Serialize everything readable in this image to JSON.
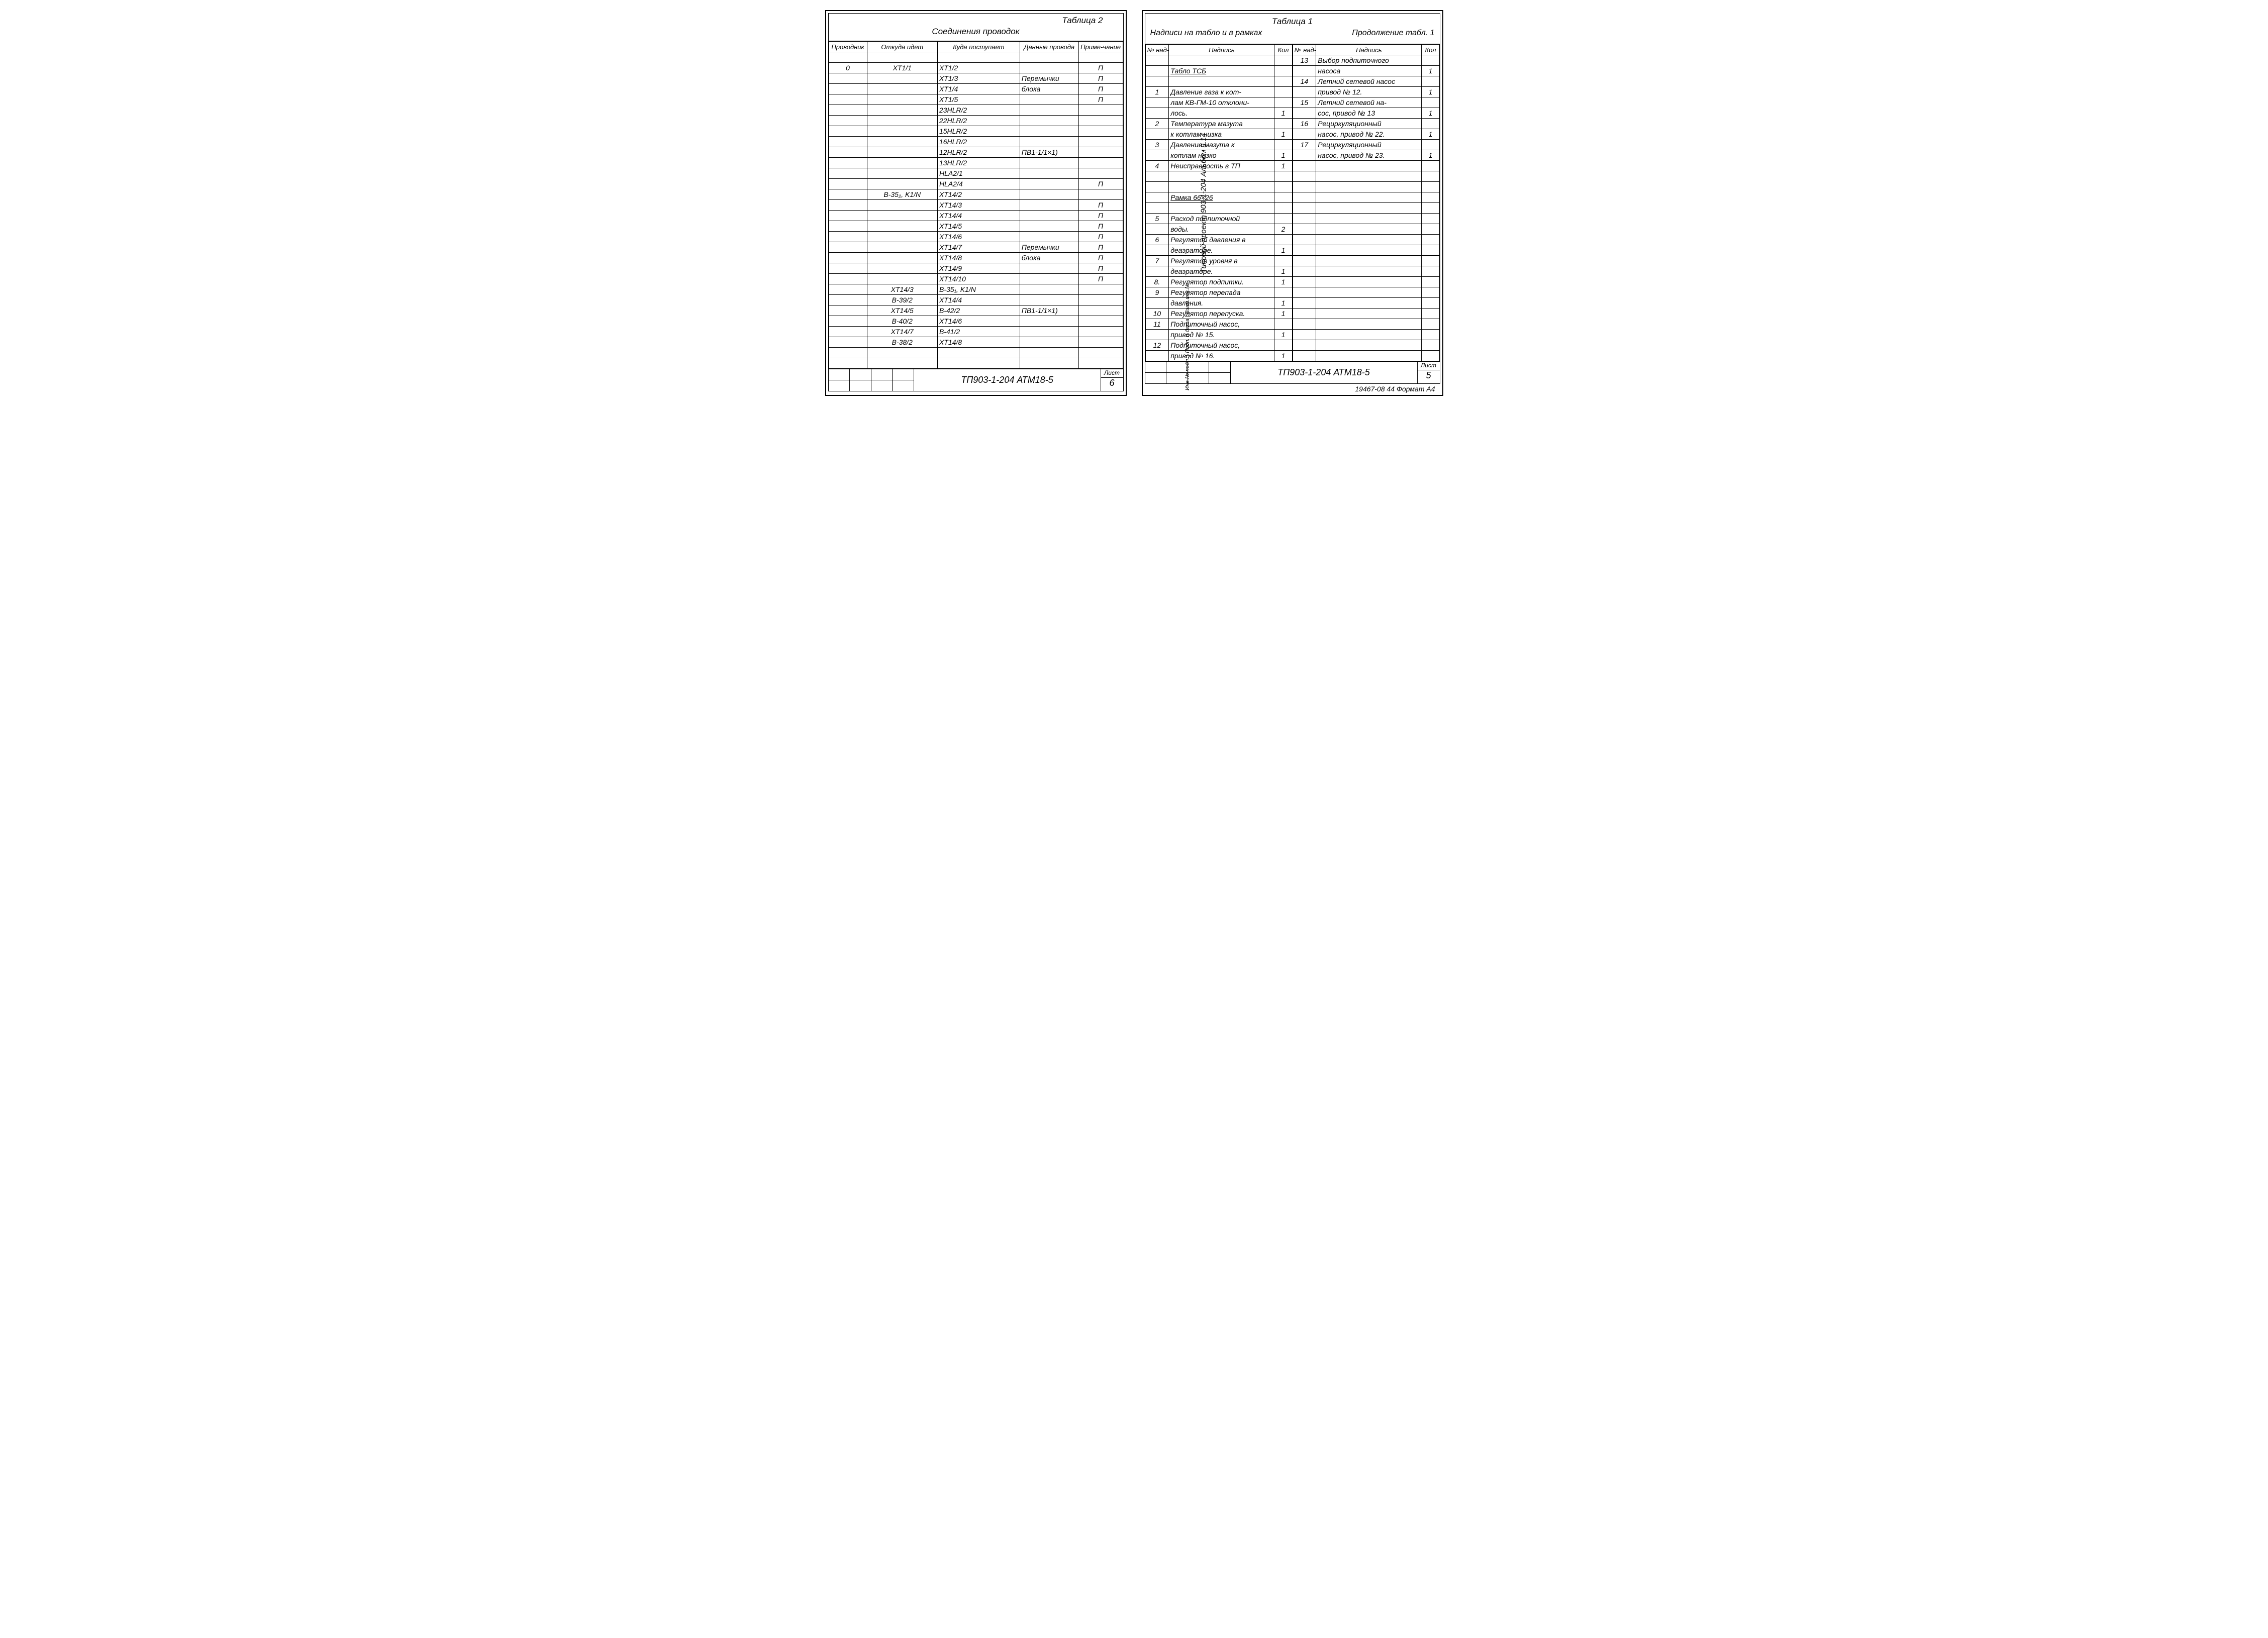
{
  "left": {
    "tableLabel": "Таблица 2",
    "title": "Соединения проводок",
    "headers": {
      "c1": "Проводник",
      "c2": "Откуда идет",
      "c3": "Куда поступает",
      "c4": "Данные провода",
      "c5": "Приме-чание"
    },
    "rows": [
      {
        "c1": "",
        "c2": "",
        "c3": "",
        "c4": "",
        "c5": ""
      },
      {
        "c1": "0",
        "c2": "XT1/1",
        "c3": "XT1/2",
        "c4": "",
        "c5": "П"
      },
      {
        "c1": "",
        "c2": "",
        "c3": "XT1/3",
        "c4": "Перемычки",
        "c5": "П"
      },
      {
        "c1": "",
        "c2": "",
        "c3": "XT1/4",
        "c4": "блока",
        "c5": "П"
      },
      {
        "c1": "",
        "c2": "",
        "c3": "XT1/5",
        "c4": "",
        "c5": "П"
      },
      {
        "c1": "",
        "c2": "",
        "c3": "23HLR/2",
        "c4": "",
        "c5": ""
      },
      {
        "c1": "",
        "c2": "",
        "c3": "22HLR/2",
        "c4": "",
        "c5": ""
      },
      {
        "c1": "",
        "c2": "",
        "c3": "15HLR/2",
        "c4": "",
        "c5": ""
      },
      {
        "c1": "",
        "c2": "",
        "c3": "16HLR/2",
        "c4": "",
        "c5": ""
      },
      {
        "c1": "",
        "c2": "",
        "c3": "12HLR/2",
        "c4": "ПВ1-1/1×1)",
        "c5": ""
      },
      {
        "c1": "",
        "c2": "",
        "c3": "13HLR/2",
        "c4": "",
        "c5": ""
      },
      {
        "c1": "",
        "c2": "",
        "c3": "HLA2/1",
        "c4": "",
        "c5": ""
      },
      {
        "c1": "",
        "c2": "",
        "c3": "HLA2/4",
        "c4": "",
        "c5": "П"
      },
      {
        "c1": "",
        "c2": "B-35₂, K1/N",
        "c3": "XT14/2",
        "c4": "",
        "c5": ""
      },
      {
        "c1": "",
        "c2": "",
        "c3": "XT14/3",
        "c4": "",
        "c5": "П"
      },
      {
        "c1": "",
        "c2": "",
        "c3": "XT14/4",
        "c4": "",
        "c5": "П"
      },
      {
        "c1": "",
        "c2": "",
        "c3": "XT14/5",
        "c4": "",
        "c5": "П"
      },
      {
        "c1": "",
        "c2": "",
        "c3": "XT14/6",
        "c4": "",
        "c5": "П"
      },
      {
        "c1": "",
        "c2": "",
        "c3": "XT14/7",
        "c4": "Перемычки",
        "c5": "П"
      },
      {
        "c1": "",
        "c2": "",
        "c3": "XT14/8",
        "c4": "блока",
        "c5": "П"
      },
      {
        "c1": "",
        "c2": "",
        "c3": "XT14/9",
        "c4": "",
        "c5": "П"
      },
      {
        "c1": "",
        "c2": "",
        "c3": "XT14/10",
        "c4": "",
        "c5": "П"
      },
      {
        "c1": "",
        "c2": "XT14/3",
        "c3": "B-35₁, K1/N",
        "c4": "",
        "c5": ""
      },
      {
        "c1": "",
        "c2": "B-39/2",
        "c3": "XT14/4",
        "c4": "",
        "c5": ""
      },
      {
        "c1": "",
        "c2": "XT14/5",
        "c3": "B-42/2",
        "c4": "ПВ1-1/1×1)",
        "c5": ""
      },
      {
        "c1": "",
        "c2": "B-40/2",
        "c3": "XT14/6",
        "c4": "",
        "c5": ""
      },
      {
        "c1": "",
        "c2": "XT14/7",
        "c3": "B-41/2",
        "c4": "",
        "c5": ""
      },
      {
        "c1": "",
        "c2": "B-38/2",
        "c3": "XT14/8",
        "c4": "",
        "c5": ""
      },
      {
        "c1": "",
        "c2": "",
        "c3": "",
        "c4": "",
        "c5": ""
      },
      {
        "c1": "",
        "c2": "",
        "c3": "",
        "c4": "",
        "c5": ""
      }
    ],
    "footer": {
      "code": "ТП903-1-204   АТМ18-5",
      "listLabel": "Лист",
      "listNo": "6"
    }
  },
  "right": {
    "tableLabel": "Таблица 1",
    "subtitleLeft": "Надписи на табло и в рамках",
    "subtitleRight": "Продолжение табл. 1",
    "headers": {
      "a": "№ над-писи",
      "b": "Надпись",
      "c": "Кол"
    },
    "leftRows": [
      {
        "a": "",
        "b": "",
        "c": ""
      },
      {
        "a": "",
        "b": "Табло ТСБ",
        "c": "",
        "u": true
      },
      {
        "a": "",
        "b": "",
        "c": ""
      },
      {
        "a": "1",
        "b": "Давление газа к кот-",
        "c": ""
      },
      {
        "a": "",
        "b": "лам КВ-ГМ-10 отклони-",
        "c": ""
      },
      {
        "a": "",
        "b": "лось.",
        "c": "1"
      },
      {
        "a": "2",
        "b": "Температура мазута",
        "c": ""
      },
      {
        "a": "",
        "b": "к котлам низка",
        "c": "1"
      },
      {
        "a": "3",
        "b": "Давление мазута к",
        "c": ""
      },
      {
        "a": "",
        "b": "котлам низко",
        "c": "1"
      },
      {
        "a": "4",
        "b": "Неисправность в ТП",
        "c": "1"
      },
      {
        "a": "",
        "b": "",
        "c": ""
      },
      {
        "a": "",
        "b": "",
        "c": ""
      },
      {
        "a": "",
        "b": "Рамка 66×26",
        "c": "",
        "u": true
      },
      {
        "a": "",
        "b": "",
        "c": ""
      },
      {
        "a": "5",
        "b": "Расход подпиточной",
        "c": ""
      },
      {
        "a": "",
        "b": "воды.",
        "c": "2"
      },
      {
        "a": "6",
        "b": "Регулятор давления в",
        "c": ""
      },
      {
        "a": "",
        "b": "деаэраторе.",
        "c": "1"
      },
      {
        "a": "7",
        "b": "Регулятор уровня в",
        "c": ""
      },
      {
        "a": "",
        "b": "деаэраторе.",
        "c": "1"
      },
      {
        "a": "8.",
        "b": "Регулятор подпитки.",
        "c": "1"
      },
      {
        "a": "9",
        "b": "Регулятор перепада",
        "c": ""
      },
      {
        "a": "",
        "b": "давления.",
        "c": "1"
      },
      {
        "a": "10",
        "b": "Регулятор перепуска.",
        "c": "1"
      },
      {
        "a": "11",
        "b": "Подпиточный насос,",
        "c": ""
      },
      {
        "a": "",
        "b": "привод № 15.",
        "c": "1"
      },
      {
        "a": "12",
        "b": "Подпиточный насос,",
        "c": ""
      },
      {
        "a": "",
        "b": "привод № 16.",
        "c": "1"
      }
    ],
    "rightRows": [
      {
        "a": "13",
        "b": "Выбор подпиточного",
        "c": ""
      },
      {
        "a": "",
        "b": "насоса",
        "c": "1"
      },
      {
        "a": "14",
        "b": "Летний сетевой насос",
        "c": ""
      },
      {
        "a": "",
        "b": "привод № 12.",
        "c": "1"
      },
      {
        "a": "15",
        "b": "Летний сетевой на-",
        "c": ""
      },
      {
        "a": "",
        "b": "сос, привод № 13",
        "c": "1"
      },
      {
        "a": "16",
        "b": "Рециркуляционный",
        "c": ""
      },
      {
        "a": "",
        "b": "насос, привод № 22.",
        "c": "1"
      },
      {
        "a": "17",
        "b": "Рециркуляционный",
        "c": ""
      },
      {
        "a": "",
        "b": "насос, привод № 23.",
        "c": "1"
      },
      {
        "a": "",
        "b": "",
        "c": ""
      },
      {
        "a": "",
        "b": "",
        "c": ""
      },
      {
        "a": "",
        "b": "",
        "c": ""
      },
      {
        "a": "",
        "b": "",
        "c": ""
      },
      {
        "a": "",
        "b": "",
        "c": ""
      },
      {
        "a": "",
        "b": "",
        "c": ""
      },
      {
        "a": "",
        "b": "",
        "c": ""
      },
      {
        "a": "",
        "b": "",
        "c": ""
      },
      {
        "a": "",
        "b": "",
        "c": ""
      },
      {
        "a": "",
        "b": "",
        "c": ""
      },
      {
        "a": "",
        "b": "",
        "c": ""
      },
      {
        "a": "",
        "b": "",
        "c": ""
      },
      {
        "a": "",
        "b": "",
        "c": ""
      },
      {
        "a": "",
        "b": "",
        "c": ""
      },
      {
        "a": "",
        "b": "",
        "c": ""
      },
      {
        "a": "",
        "b": "",
        "c": ""
      },
      {
        "a": "",
        "b": "",
        "c": ""
      },
      {
        "a": "",
        "b": "",
        "c": ""
      },
      {
        "a": "",
        "b": "",
        "c": ""
      }
    ],
    "footer": {
      "code": "ТП903-1-204   АТМ18-5",
      "listLabel": "Лист",
      "listNo": "5"
    },
    "sideText": "Типовой проект 903-1-204    Альбом 9.14",
    "sideTextLower": "Инв.№ подл. | Подп. и дата | Взам.инв.№",
    "bottomNote": "19467-08  44  Формат А4"
  }
}
